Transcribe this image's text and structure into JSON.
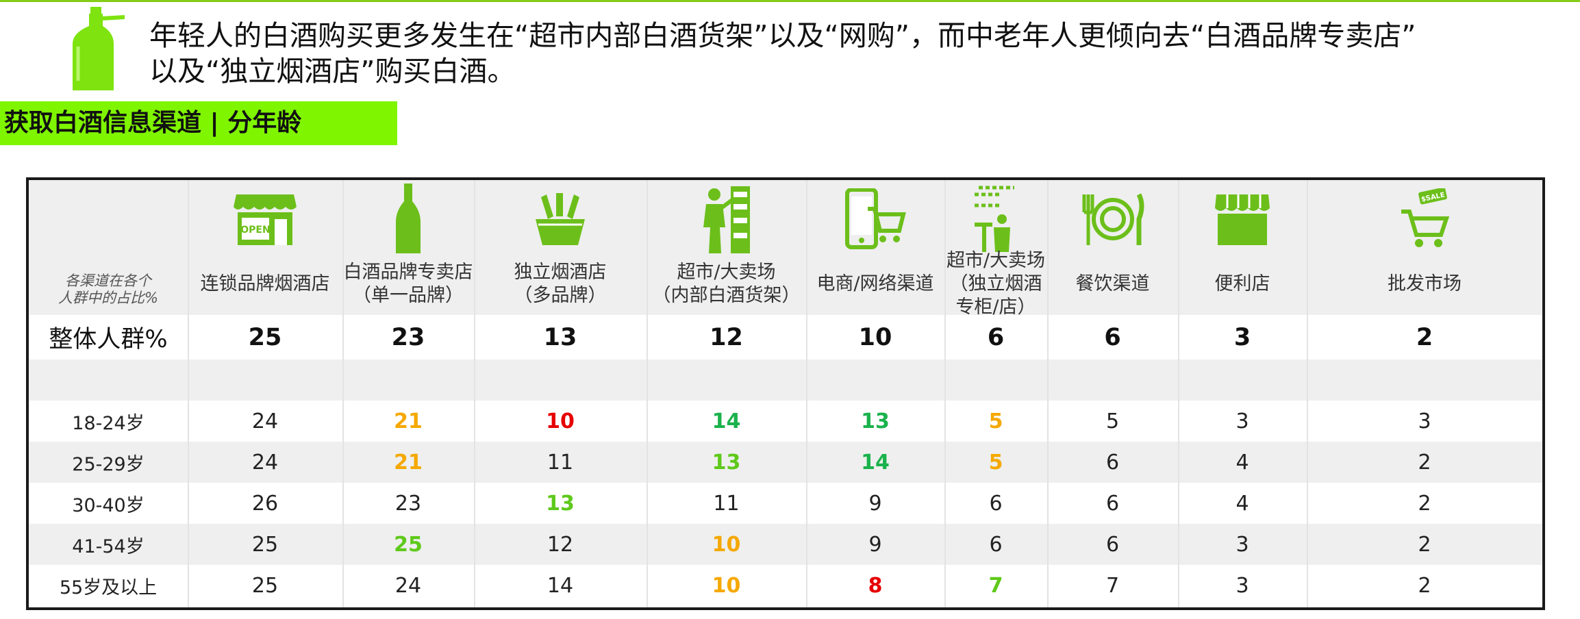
{
  "headline": {
    "line1": "年轻人的白酒购买更多发生在“超市内部白酒货架”以及“网购”，而中老年人更倾向去“白酒品牌专卖店”",
    "line2": "以及“独立烟酒店”购买白酒。"
  },
  "section": {
    "title": "获取白酒信息渠道 | 分年龄"
  },
  "colors": {
    "accent": "#7ff500",
    "orange": "#f5a800",
    "red": "#e60000",
    "green": "#1ab24c",
    "lime": "#5ec91a"
  },
  "table": {
    "corner_label": "各渠道在各个\n人群中的占比%",
    "channels": [
      {
        "label": "连锁品牌烟酒店",
        "icon": "storefront-open-icon"
      },
      {
        "label": "白酒品牌专卖店\n（单一品牌）",
        "icon": "bottle-icon"
      },
      {
        "label": "独立烟酒店\n（多品牌）",
        "icon": "bottles-basket-icon"
      },
      {
        "label": "超市/大卖场\n（内部白酒货架）",
        "icon": "shopper-shelf-icon"
      },
      {
        "label": "电商/网络渠道",
        "icon": "phone-cart-icon"
      },
      {
        "label": "超市/大卖场\n（独立烟酒专柜/店）",
        "icon": "counter-icon"
      },
      {
        "label": "餐饮渠道",
        "icon": "plate-cutlery-icon"
      },
      {
        "label": "便利店",
        "icon": "shop-awning-icon"
      },
      {
        "label": "批发市场",
        "icon": "sale-cart-icon"
      }
    ],
    "total_label": "整体人群%",
    "total_values": [
      "25",
      "23",
      "13",
      "12",
      "10",
      "6",
      "6",
      "3",
      "2"
    ],
    "rows": [
      {
        "age": "18-24岁",
        "values": [
          "24",
          "21",
          "10",
          "14",
          "13",
          "5",
          "5",
          "3",
          "3"
        ]
      },
      {
        "age": "25-29岁",
        "values": [
          "24",
          "21",
          "11",
          "13",
          "14",
          "5",
          "6",
          "4",
          "2"
        ]
      },
      {
        "age": "30-40岁",
        "values": [
          "26",
          "23",
          "13",
          "11",
          "9",
          "6",
          "6",
          "4",
          "2"
        ]
      },
      {
        "age": "41-54岁",
        "values": [
          "25",
          "25",
          "12",
          "10",
          "9",
          "6",
          "6",
          "3",
          "2"
        ]
      },
      {
        "age": "55岁及以上",
        "values": [
          "25",
          "24",
          "14",
          "10",
          "8",
          "7",
          "7",
          "3",
          "2"
        ]
      }
    ],
    "highlights": [
      [
        "",
        "orange",
        "red",
        "green",
        "green",
        "orange",
        "",
        "",
        ""
      ],
      [
        "",
        "orange",
        "",
        "lime",
        "green",
        "orange",
        "",
        "",
        ""
      ],
      [
        "",
        "",
        "lime",
        "",
        "",
        "",
        "",
        "",
        ""
      ],
      [
        "",
        "lime",
        "",
        "orange",
        "",
        "",
        "",
        "",
        ""
      ],
      [
        "",
        "",
        "",
        "orange",
        "red",
        "lime",
        "",
        "",
        ""
      ]
    ]
  }
}
